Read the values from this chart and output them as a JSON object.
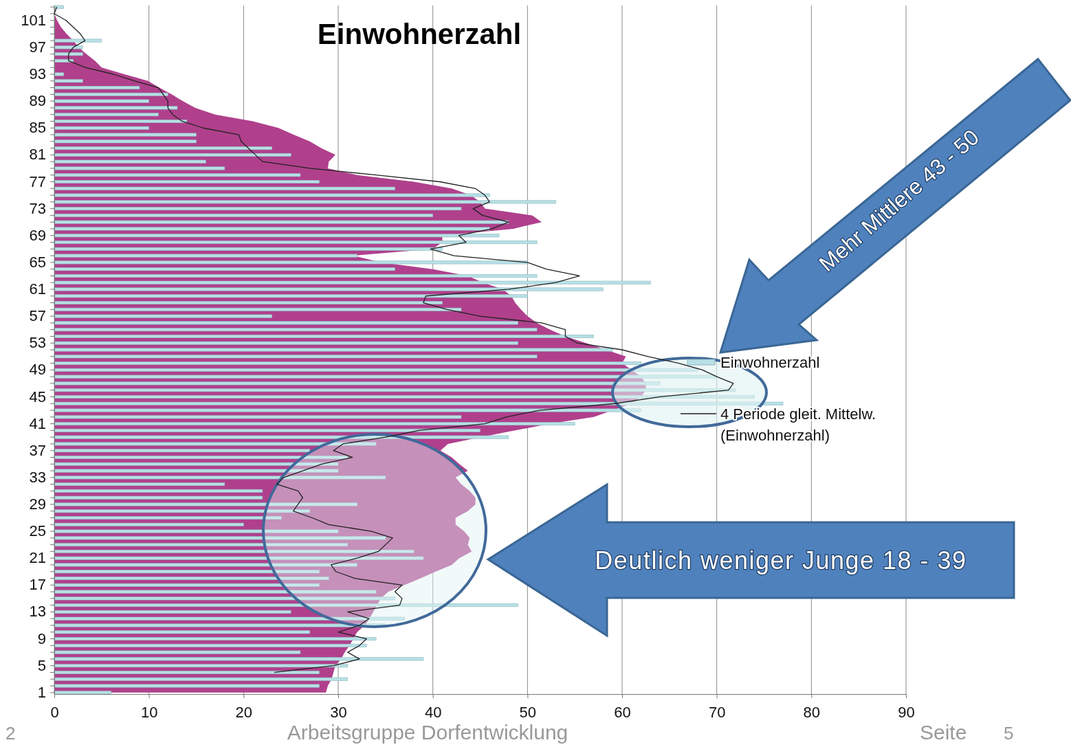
{
  "chart_data": {
    "type": "bar",
    "orientation": "horizontal",
    "title": "Einwohnerzahl",
    "categories": [
      null,
      null,
      "101",
      null,
      null,
      null,
      "97",
      null,
      null,
      null,
      "93",
      null,
      null,
      null,
      "89",
      null,
      null,
      null,
      "85",
      null,
      null,
      null,
      "81",
      null,
      null,
      null,
      "77",
      null,
      null,
      null,
      "73",
      null,
      null,
      null,
      "69",
      null,
      null,
      null,
      "65",
      null,
      null,
      null,
      "61",
      null,
      null,
      null,
      "57",
      null,
      null,
      null,
      "53",
      null,
      null,
      null,
      "49",
      null,
      null,
      null,
      "45",
      null,
      null,
      null,
      "41",
      null,
      null,
      null,
      "37",
      null,
      null,
      null,
      "33",
      null,
      null,
      null,
      "29",
      null,
      null,
      null,
      "25",
      null,
      null,
      null,
      "21",
      null,
      null,
      null,
      "17",
      null,
      null,
      null,
      "13",
      null,
      null,
      null,
      "9",
      null,
      null,
      null,
      "5",
      null,
      null,
      null,
      "1"
    ],
    "series": [
      {
        "type": "area",
        "color": "#b0408c",
        "values": [
          0,
          0,
          0.3,
          0.7,
          1.3,
          2,
          2.6,
          3.4,
          4.3,
          5,
          7.4,
          9.9,
          11.1,
          12.4,
          13.6,
          14.9,
          17,
          21,
          23.7,
          25.3,
          27,
          28.2,
          29.7,
          29,
          28.9,
          32,
          38,
          42,
          44,
          45,
          45.5,
          50.5,
          51.5,
          48.5,
          41,
          41,
          40,
          31.6,
          34.5,
          40,
          43.7,
          45.3,
          47.4,
          48.3,
          48.7,
          49.3,
          50,
          51,
          52.4,
          54,
          56.2,
          58.3,
          60.4,
          60,
          61,
          62,
          62.5,
          62.5,
          62,
          61,
          59,
          57,
          52.4,
          48.7,
          45,
          41.6,
          40.8,
          42,
          42.8,
          43.7,
          42.4,
          43,
          43.9,
          44.5,
          44.5,
          43.7,
          42.4,
          42.4,
          43.3,
          43.9,
          43.7,
          44.1,
          42.8,
          42,
          40.3,
          38.7,
          37,
          35.3,
          34.5,
          34.1,
          33.7,
          33.3,
          32.8,
          32,
          31.6,
          31.2,
          30.7,
          30.3,
          29.7,
          29.5,
          29.3,
          28.9,
          28.7
        ]
      },
      {
        "name": "Einwohnerzahl",
        "color": "#b7e0e6",
        "values": [
          1,
          0,
          0,
          0,
          0,
          5,
          3,
          3,
          2,
          0,
          1,
          3,
          9,
          12,
          10,
          13,
          11,
          14,
          10,
          15,
          15,
          23,
          25,
          16,
          18,
          26,
          28,
          36,
          46,
          53,
          43,
          40,
          48,
          46,
          47,
          51,
          41,
          32,
          50,
          36,
          51,
          63,
          58,
          50,
          41,
          43,
          23,
          49,
          51,
          57,
          49,
          59,
          51,
          62,
          68,
          70,
          64,
          72,
          74,
          77,
          62,
          43,
          55,
          45,
          48,
          34,
          27,
          31,
          30,
          30,
          35,
          18,
          22,
          22,
          32,
          27,
          24,
          20,
          30,
          35,
          31,
          38,
          39,
          32,
          28,
          29,
          28,
          34,
          36,
          49,
          25,
          37,
          35,
          27,
          34,
          33,
          26,
          39,
          31,
          28,
          31,
          28,
          6
        ]
      },
      {
        "type": "line",
        "name": "4 Periode gleit. Mittelw. (Einwohnerzahl)",
        "color": "#222222",
        "values": [
          0.25,
          0,
          1.25,
          2,
          2.75,
          3.25,
          2,
          1.5,
          1.5,
          3.25,
          6.25,
          8.5,
          11,
          11.5,
          12,
          12,
          12.5,
          13.5,
          15.75,
          19.5,
          19.75,
          20.5,
          21.25,
          22,
          27,
          34,
          40.75,
          44.5,
          45.5,
          46,
          44.25,
          45.25,
          48,
          46.25,
          42.75,
          43.5,
          39.75,
          42.25,
          50,
          52,
          55.5,
          53,
          48,
          39.25,
          39,
          41.5,
          45,
          51.5,
          54,
          54,
          55.25,
          60,
          62.75,
          66,
          68.5,
          70,
          71.75,
          71.25,
          64,
          59.25,
          51.25,
          47.75,
          45.5,
          38.5,
          35,
          30.5,
          29.5,
          31.5,
          28.25,
          26.25,
          24.25,
          23.5,
          25.75,
          26.25,
          25.75,
          25.25,
          27.25,
          29,
          33.5,
          35.75,
          35,
          34.25,
          32,
          29.25,
          29.75,
          31.75,
          36.75,
          36,
          36.75,
          36.5,
          31,
          33.25,
          32.25,
          30,
          33,
          32.25,
          31,
          32.25,
          29.5,
          23.25,
          null,
          null,
          null
        ]
      }
    ],
    "xlim": [
      0,
      90
    ],
    "xticks": [
      0,
      10,
      20,
      30,
      40,
      50,
      60,
      70,
      80,
      90
    ],
    "grid": "x",
    "legend": "right",
    "annotations": [
      "Mehr Mittlere 43 - 50",
      "Deutlich weniger Junge 18 - 39",
      "2",
      "Arbeitsgruppe Dorfentwicklung",
      "Seite",
      "5"
    ]
  }
}
